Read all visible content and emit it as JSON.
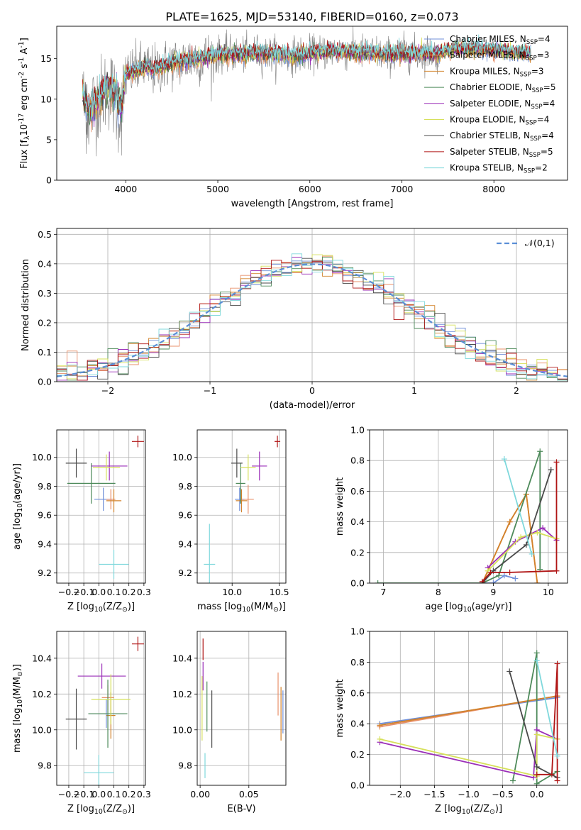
{
  "title": "PLATE=1625, MJD=53140, FIBERID=0160, z=0.073",
  "models": [
    {
      "name": "Chabrier MILES, N$_{SSP}$=4",
      "color": "#6f8fd8"
    },
    {
      "name": "Salpeter MILES, N$_{SSP}$=3",
      "color": "#e8906a"
    },
    {
      "name": "Kroupa MILES, N$_{SSP}$=3",
      "color": "#d2822a"
    },
    {
      "name": "Chabrier ELODIE, N$_{SSP}$=5",
      "color": "#4d8a5a"
    },
    {
      "name": "Salpeter ELODIE, N$_{SSP}$=4",
      "color": "#9b2fb8"
    },
    {
      "name": "Kroupa ELODIE, N$_{SSP}$=4",
      "color": "#d6e05a"
    },
    {
      "name": "Chabrier STELIB, N$_{SSP}$=4",
      "color": "#4a4a4a"
    },
    {
      "name": "Salpeter STELIB, N$_{SSP}$=5",
      "color": "#b01515"
    },
    {
      "name": "Kroupa STELIB, N$_{SSP}$=2",
      "color": "#7fd8dc"
    }
  ],
  "chart_data": [
    {
      "id": "spectrum",
      "type": "line",
      "title": "PLATE=1625, MJD=53140, FIBERID=0160, z=0.073",
      "xlabel": "wavelength [Angstrom, rest frame]",
      "ylabel": "Flux [f$_\\lambda$10$^{-17}$ erg cm$^{-2}$ s$^{-1}$ A$^{-1}$]",
      "xlim": [
        3250,
        8800
      ],
      "ylim": [
        0,
        19
      ],
      "xticks": [
        4000,
        5000,
        6000,
        7000,
        8000
      ],
      "yticks": [
        0,
        5,
        10,
        15
      ],
      "grid": false,
      "legend": "top-right",
      "data_x": [
        3530,
        3550,
        3600,
        3650,
        3700,
        3750,
        3800,
        3850,
        3900,
        3950,
        4000,
        4100,
        4200,
        4300,
        4400,
        4500,
        4600,
        4700,
        4800,
        4900,
        5000,
        5100,
        5200,
        5300,
        5400,
        5500,
        5600,
        5700,
        5800,
        5900,
        6000,
        6100,
        6200,
        6300,
        6400,
        6500,
        6600,
        6700,
        6800,
        6900,
        7000,
        7100,
        7200,
        7300,
        7400
      ],
      "data_y": [
        11,
        9,
        8,
        9.5,
        10,
        10.5,
        11.5,
        11,
        9,
        8,
        13,
        13.5,
        14,
        13.5,
        14,
        14.5,
        14.5,
        15,
        15,
        15.2,
        15.5,
        15.6,
        15.5,
        15.5,
        15.8,
        15.6,
        15.6,
        15.3,
        15.5,
        15.5,
        15.6,
        15.7,
        16,
        16,
        15.8,
        16,
        15.7,
        15.8,
        15.5,
        15.4,
        15.8,
        15.7,
        15.6,
        15.8,
        15.5
      ],
      "model_x": [
        3530,
        3600,
        3700,
        3800,
        3900,
        3950,
        4000,
        4100,
        4200,
        4300,
        4400,
        4500,
        4600,
        4700,
        4800,
        4900,
        5000,
        5200,
        5400,
        5600,
        5800,
        6000,
        6200,
        6400,
        6600,
        6800,
        7000,
        7200,
        7400,
        7600,
        7800,
        8000,
        8200,
        8400
      ],
      "model_y": [
        10.5,
        8.5,
        10,
        11.5,
        11,
        9,
        13,
        13.5,
        14,
        13.8,
        14,
        14.5,
        14.6,
        15,
        15,
        15.2,
        15.5,
        15.5,
        15.7,
        15.6,
        15.4,
        15.6,
        15.9,
        15.8,
        15.8,
        15.5,
        15.7,
        15.6,
        15.6,
        16.3,
        16.2,
        16.1,
        15.9,
        15.7
      ]
    },
    {
      "id": "residuals",
      "type": "line",
      "xlabel": "(data-model)/error",
      "ylabel": "Normed distribution",
      "xlim": [
        -2.5,
        2.5
      ],
      "ylim": [
        0,
        0.52
      ],
      "xticks": [
        -2,
        -1,
        0,
        1,
        2
      ],
      "yticks": [
        0.0,
        0.1,
        0.2,
        0.3,
        0.4,
        0.5
      ],
      "grid": true,
      "legend": "top-right",
      "reference_label": "$\\mathcal{N}(0,1)$",
      "bin_width": 0.1
    },
    {
      "id": "age-vs-Z",
      "type": "scatter",
      "xlabel": "Z [log$_{10}$(Z/Z$_\\odot$)]",
      "ylabel": "age  [log$_{10}$(age/yr)]",
      "xlim": [
        -0.28,
        0.31
      ],
      "ylim": [
        9.13,
        10.19
      ],
      "xticks": [
        -0.2,
        -0.1,
        0.0,
        0.1,
        0.2,
        0.3
      ],
      "yticks": [
        9.2,
        9.4,
        9.6,
        9.8,
        10.0
      ],
      "grid": true,
      "points": [
        {
          "x": 0.03,
          "y": 9.71,
          "xerr": 0.06,
          "yerr": 0.08
        },
        {
          "x": 0.08,
          "y": 9.71,
          "xerr": 0.03,
          "yerr": 0.07
        },
        {
          "x": 0.1,
          "y": 9.7,
          "xerr": 0.05,
          "yerr": 0.08
        },
        {
          "x": -0.05,
          "y": 9.82,
          "xerr": 0.16,
          "yerr": 0.14
        },
        {
          "x": 0.07,
          "y": 9.94,
          "xerr": 0.12,
          "yerr": 0.1
        },
        {
          "x": 0.05,
          "y": 9.93,
          "xerr": 0.09,
          "yerr": 0.09
        },
        {
          "x": -0.15,
          "y": 9.96,
          "xerr": 0.07,
          "yerr": 0.1
        },
        {
          "x": 0.26,
          "y": 10.11,
          "xerr": 0.04,
          "yerr": 0.04
        },
        {
          "x": 0.1,
          "y": 9.26,
          "xerr": 0.1,
          "yerr": 0.1
        }
      ]
    },
    {
      "id": "age-vs-mass",
      "type": "scatter",
      "xlabel": "mass [log$_{10}$(M/M$_\\odot$)]",
      "ylabel": "",
      "xlim": [
        9.63,
        10.57
      ],
      "ylim": [
        9.13,
        10.19
      ],
      "xticks": [
        10.0,
        10.5
      ],
      "yticks": [
        9.2,
        9.4,
        9.6,
        9.8,
        10.0
      ],
      "grid": true,
      "points": [
        {
          "x": 10.08,
          "y": 9.71,
          "xerr": 0.05,
          "yerr": 0.08
        },
        {
          "x": 10.17,
          "y": 9.71,
          "xerr": 0.06,
          "yerr": 0.1
        },
        {
          "x": 10.1,
          "y": 9.7,
          "xerr": 0.06,
          "yerr": 0.08
        },
        {
          "x": 10.09,
          "y": 9.82,
          "xerr": 0.05,
          "yerr": 0.14
        },
        {
          "x": 10.29,
          "y": 9.94,
          "xerr": 0.08,
          "yerr": 0.1
        },
        {
          "x": 10.17,
          "y": 9.93,
          "xerr": 0.08,
          "yerr": 0.09
        },
        {
          "x": 10.05,
          "y": 9.96,
          "xerr": 0.06,
          "yerr": 0.1
        },
        {
          "x": 10.48,
          "y": 10.11,
          "xerr": 0.03,
          "yerr": 0.04
        },
        {
          "x": 9.76,
          "y": 9.26,
          "xerr": 0.06,
          "yerr": 0.28
        }
      ]
    },
    {
      "id": "mass-weight-vs-age",
      "type": "line",
      "xlabel": "age  [log$_{10}$(age/yr)]",
      "ylabel": "mass weight",
      "xlim": [
        6.75,
        10.35
      ],
      "ylim": [
        0,
        1.0
      ],
      "xticks": [
        7,
        8,
        9,
        10
      ],
      "yticks": [
        0.0,
        0.2,
        0.4,
        0.6,
        0.8,
        1.0
      ],
      "grid": true,
      "series": [
        {
          "model": 0,
          "x": [
            8.8,
            9.0,
            9.2,
            9.4
          ],
          "y": [
            0.0,
            0.0,
            0.05,
            0.03
          ]
        },
        {
          "model": 1,
          "x": [
            8.8,
            9.3,
            9.6,
            9.8
          ],
          "y": [
            0.0,
            0.4,
            0.58,
            0.0
          ]
        },
        {
          "model": 2,
          "x": [
            8.8,
            9.3,
            9.6,
            9.8
          ],
          "y": [
            0.0,
            0.4,
            0.58,
            0.0
          ]
        },
        {
          "model": 3,
          "x": [
            6.9,
            8.8,
            9.1,
            9.85,
            9.85
          ],
          "y": [
            0.0,
            0.0,
            0.05,
            0.86,
            0.09
          ]
        },
        {
          "model": 4,
          "x": [
            8.9,
            9.4,
            9.9,
            10.15
          ],
          "y": [
            0.1,
            0.27,
            0.36,
            0.28
          ]
        },
        {
          "model": 5,
          "x": [
            8.9,
            9.5,
            9.8,
            10.15
          ],
          "y": [
            0.08,
            0.3,
            0.33,
            0.29
          ]
        },
        {
          "model": 6,
          "x": [
            8.8,
            9.0,
            9.6,
            10.05
          ],
          "y": [
            0.0,
            0.08,
            0.25,
            0.74
          ]
        },
        {
          "model": 7,
          "x": [
            8.8,
            8.95,
            9.3,
            10.15,
            10.15
          ],
          "y": [
            0.01,
            0.07,
            0.07,
            0.08,
            0.79
          ]
        },
        {
          "model": 8,
          "x": [
            9.2,
            9.7
          ],
          "y": [
            0.81,
            0.19
          ]
        }
      ]
    },
    {
      "id": "mass-vs-Z",
      "type": "scatter",
      "xlabel": "Z [log$_{10}$(Z/Z$_\\odot$)]",
      "ylabel": "mass [log$_{10}$(M/M$_\\odot$)]",
      "xlim": [
        -0.28,
        0.31
      ],
      "ylim": [
        9.69,
        10.55
      ],
      "xticks": [
        -0.2,
        -0.1,
        0.0,
        0.1,
        0.2,
        0.3
      ],
      "yticks": [
        9.8,
        10.0,
        10.2,
        10.4
      ],
      "grid": true,
      "points": [
        {
          "x": 0.05,
          "y": 10.09,
          "xerr": 0.12,
          "yerr": 0.08
        },
        {
          "x": 0.06,
          "y": 10.18,
          "xerr": 0.04,
          "yerr": 0.07
        },
        {
          "x": 0.08,
          "y": 10.08,
          "xerr": 0.03,
          "yerr": 0.13
        },
        {
          "x": 0.06,
          "y": 10.09,
          "xerr": 0.13,
          "yerr": 0.19
        },
        {
          "x": 0.02,
          "y": 10.3,
          "xerr": 0.16,
          "yerr": 0.07
        },
        {
          "x": 0.08,
          "y": 10.17,
          "xerr": 0.13,
          "yerr": 0.14
        },
        {
          "x": -0.15,
          "y": 10.06,
          "xerr": 0.07,
          "yerr": 0.17
        },
        {
          "x": 0.26,
          "y": 10.48,
          "xerr": 0.04,
          "yerr": 0.04
        },
        {
          "x": 0.0,
          "y": 9.76,
          "xerr": 0.1,
          "yerr": 0.1
        }
      ]
    },
    {
      "id": "mass-vs-EBV",
      "type": "scatter",
      "xlabel": "E(B-V)",
      "ylabel": "",
      "xlim": [
        -0.003,
        0.088
      ],
      "ylim": [
        9.69,
        10.55
      ],
      "xticks": [
        0.0,
        0.05
      ],
      "yticks": [
        9.8,
        10.0,
        10.2,
        10.4
      ],
      "grid": true,
      "points": [
        {
          "x": 0.085,
          "y": 10.1,
          "xerr": 0.0,
          "yerr": 0.12
        },
        {
          "x": 0.08,
          "y": 10.2,
          "xerr": 0.0,
          "yerr": 0.12
        },
        {
          "x": 0.083,
          "y": 10.09,
          "xerr": 0.0,
          "yerr": 0.15
        },
        {
          "x": 0.007,
          "y": 10.13,
          "xerr": 0.0,
          "yerr": 0.14
        },
        {
          "x": 0.003,
          "y": 10.3,
          "xerr": 0.0,
          "yerr": 0.08
        },
        {
          "x": 0.002,
          "y": 10.12,
          "xerr": 0.0,
          "yerr": 0.18
        },
        {
          "x": 0.012,
          "y": 10.06,
          "xerr": 0.0,
          "yerr": 0.16
        },
        {
          "x": 0.003,
          "y": 10.45,
          "xerr": 0.0,
          "yerr": 0.06
        },
        {
          "x": 0.005,
          "y": 9.8,
          "xerr": 0.0,
          "yerr": 0.07
        }
      ]
    },
    {
      "id": "mass-weight-vs-Z",
      "type": "line",
      "xlabel": "Z [log$_{10}$(Z/Z$_\\odot$)]",
      "ylabel": "mass weight",
      "xlim": [
        -2.45,
        0.45
      ],
      "ylim": [
        0,
        1.0
      ],
      "xticks": [
        -2.0,
        -1.5,
        -1.0,
        -0.5,
        0.0
      ],
      "yticks": [
        0.0,
        0.2,
        0.4,
        0.6,
        0.8,
        1.0
      ],
      "grid": true,
      "series": [
        {
          "model": 0,
          "x": [
            -2.3,
            0.3
          ],
          "y": [
            0.4,
            0.57
          ]
        },
        {
          "model": 1,
          "x": [
            -2.3,
            0.3
          ],
          "y": [
            0.38,
            0.58
          ]
        },
        {
          "model": 2,
          "x": [
            -2.3,
            0.3
          ],
          "y": [
            0.39,
            0.58
          ]
        },
        {
          "model": 3,
          "x": [
            -0.35,
            0.0,
            0.0,
            0.3
          ],
          "y": [
            0.03,
            0.86,
            0.01,
            0.09
          ]
        },
        {
          "model": 4,
          "x": [
            -2.3,
            -0.05,
            0.0,
            0.3
          ],
          "y": [
            0.28,
            0.05,
            0.36,
            0.3
          ]
        },
        {
          "model": 5,
          "x": [
            -2.3,
            0.0,
            0.0,
            0.3
          ],
          "y": [
            0.3,
            0.06,
            0.33,
            0.3
          ]
        },
        {
          "model": 6,
          "x": [
            -0.4,
            0.0,
            0.3
          ],
          "y": [
            0.74,
            0.12,
            0.05
          ]
        },
        {
          "model": 7,
          "x": [
            0.0,
            0.22,
            0.3,
            0.3
          ],
          "y": [
            0.07,
            0.07,
            0.79,
            0.03
          ]
        },
        {
          "model": 8,
          "x": [
            0.0,
            0.3
          ],
          "y": [
            0.81,
            0.19
          ]
        }
      ]
    }
  ]
}
